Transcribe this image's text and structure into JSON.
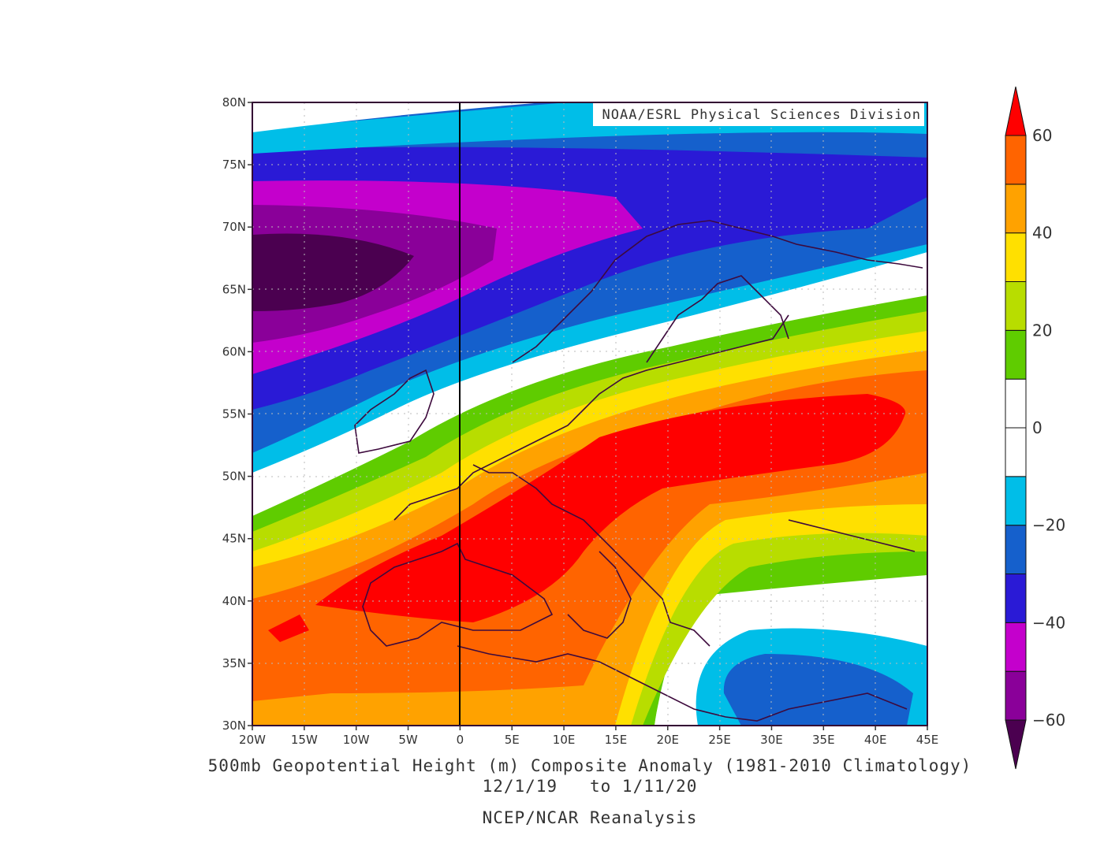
{
  "map": {
    "credit": "NOAA/ESRL Physical Sciences Division",
    "title": "500mb Geopotential Height (m) Composite Anomaly (1981-2010 Climatology)",
    "date_range": "12/1/19   to 1/11/20",
    "source": "NCEP/NCAR Reanalysis",
    "extent": {
      "lon": [
        -20,
        45
      ],
      "lat": [
        30,
        80
      ]
    },
    "lon_ticks": [
      "20W",
      "15W",
      "10W",
      "5W",
      "0",
      "5E",
      "10E",
      "15E",
      "20E",
      "25E",
      "30E",
      "35E",
      "40E",
      "45E"
    ],
    "lat_ticks": [
      "30N",
      "35N",
      "40N",
      "45N",
      "50N",
      "55N",
      "60N",
      "65N",
      "70N",
      "75N",
      "80N"
    ],
    "grid": true,
    "prime_meridian_line": true
  },
  "colorbar": {
    "levels": [
      -60,
      -50,
      -40,
      -30,
      -20,
      -10,
      0,
      10,
      20,
      30,
      40,
      50,
      60
    ],
    "labels": [
      "60",
      "40",
      "20",
      "0",
      "-20",
      "-40",
      "-60"
    ],
    "colors": [
      "#4b0050",
      "#8a0099",
      "#c400cc",
      "#2a1ad6",
      "#1560cc",
      "#00bee8",
      "#ffffff",
      "#ffffff",
      "#5fcc00",
      "#b8dd00",
      "#ffe000",
      "#ffa200",
      "#ff6400",
      "#ff0000"
    ]
  },
  "anomaly_field": {
    "units": "m",
    "max_center": {
      "lon": 30,
      "lat": 53,
      "value_band": "50 to 60+"
    },
    "min_center": {
      "lon": -17,
      "lat": 67,
      "value_band": "below -60"
    },
    "secondary_min": {
      "lon": 33,
      "lat": 33,
      "value_band": "-30 to -20"
    }
  }
}
